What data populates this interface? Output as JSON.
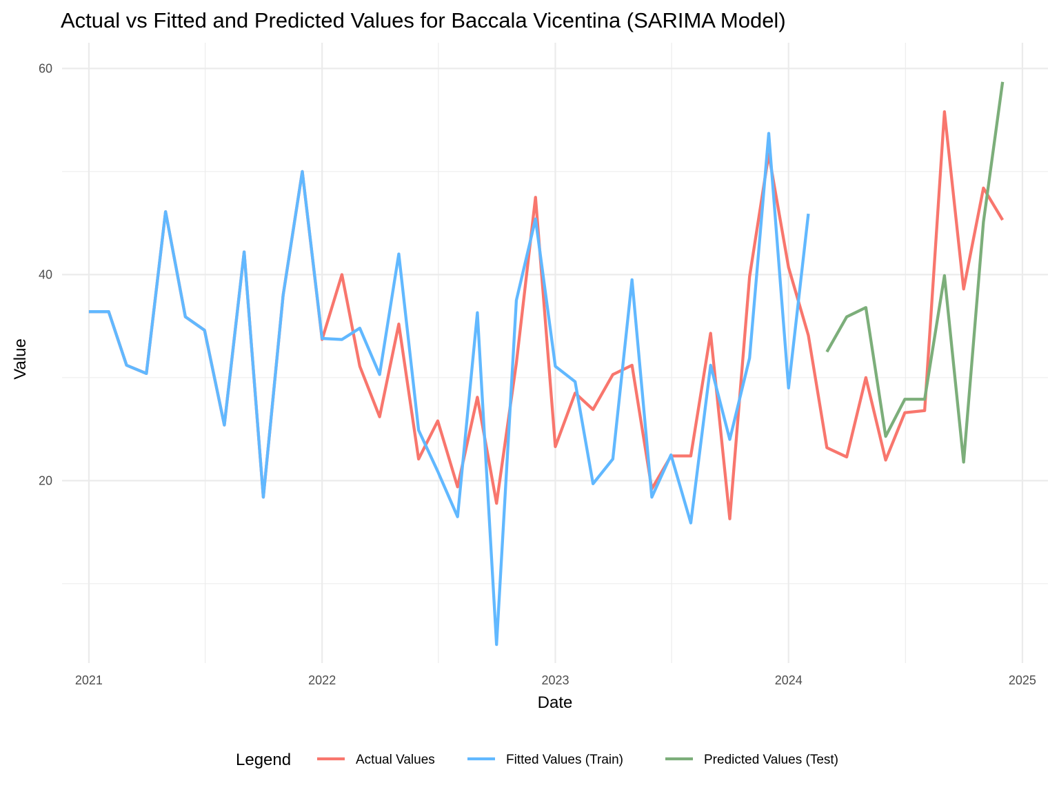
{
  "chart_data": {
    "type": "line",
    "title": "Actual vs Fitted and Predicted Values for Baccala Vicentina (SARIMA Model)",
    "xlabel": "Date",
    "ylabel": "Value",
    "x_ticks": [
      "2021",
      "2022",
      "2023",
      "2024",
      "2025"
    ],
    "y_ticks": [
      20,
      40,
      60
    ],
    "ylim": [
      2.3,
      62.5
    ],
    "xlim": [
      "2020-11-20",
      "2025-02-10"
    ],
    "grid": true,
    "legend": {
      "title": "Legend",
      "position": "bottom"
    },
    "series": [
      {
        "name": "Actual Values",
        "color": "#F8766D",
        "x": [
          "2021-01-01",
          "2021-02-01",
          "2021-03-01",
          "2021-04-01",
          "2021-05-01",
          "2021-06-01",
          "2021-07-01",
          "2021-08-01",
          "2021-09-01",
          "2021-10-01",
          "2021-11-01",
          "2021-12-01",
          "2022-01-01",
          "2022-02-01",
          "2022-03-01",
          "2022-04-01",
          "2022-05-01",
          "2022-06-01",
          "2022-07-01",
          "2022-08-01",
          "2022-09-01",
          "2022-10-01",
          "2022-11-01",
          "2022-12-01",
          "2023-01-01",
          "2023-02-01",
          "2023-03-01",
          "2023-04-01",
          "2023-05-01",
          "2023-06-01",
          "2023-07-01",
          "2023-08-01",
          "2023-09-01",
          "2023-10-01",
          "2023-11-01",
          "2023-12-01",
          "2024-01-01",
          "2024-02-01",
          "2024-03-01",
          "2024-04-01",
          "2024-05-01",
          "2024-06-01",
          "2024-07-01",
          "2024-08-01",
          "2024-09-01",
          "2024-10-01",
          "2024-11-01",
          "2024-12-01"
        ],
        "y": [
          36.4,
          36.4,
          31.2,
          30.4,
          46.1,
          35.9,
          34.6,
          25.4,
          42.2,
          18.4,
          38.0,
          50.0,
          33.7,
          40.0,
          31.1,
          26.2,
          35.2,
          22.1,
          25.8,
          19.4,
          28.1,
          17.8,
          31.4,
          47.5,
          23.3,
          28.5,
          26.9,
          30.3,
          31.2,
          19.2,
          22.4,
          22.4,
          34.3,
          16.3,
          39.8,
          51.7,
          40.7,
          34.1,
          23.2,
          22.3,
          30.0,
          22.0,
          26.6,
          26.8,
          55.8,
          38.6,
          48.4,
          45.3
        ]
      },
      {
        "name": "Fitted Values (Train)",
        "color": "#61B8FF",
        "x": [
          "2021-01-01",
          "2021-02-01",
          "2021-03-01",
          "2021-04-01",
          "2021-05-01",
          "2021-06-01",
          "2021-07-01",
          "2021-08-01",
          "2021-09-01",
          "2021-10-01",
          "2021-11-01",
          "2021-12-01",
          "2022-01-01",
          "2022-02-01",
          "2022-03-01",
          "2022-04-01",
          "2022-05-01",
          "2022-06-01",
          "2022-07-01",
          "2022-08-01",
          "2022-09-01",
          "2022-10-01",
          "2022-11-01",
          "2022-12-01",
          "2023-01-01",
          "2023-02-01",
          "2023-03-01",
          "2023-04-01",
          "2023-05-01",
          "2023-06-01",
          "2023-07-01",
          "2023-08-01",
          "2023-09-01",
          "2023-10-01",
          "2023-11-01",
          "2023-12-01",
          "2024-01-01",
          "2024-02-01"
        ],
        "y": [
          36.4,
          36.4,
          31.2,
          30.4,
          46.1,
          35.9,
          34.6,
          25.4,
          42.2,
          18.4,
          38.0,
          50.0,
          33.8,
          33.7,
          34.8,
          30.3,
          42.0,
          24.9,
          20.9,
          16.5,
          36.3,
          4.1,
          37.5,
          45.4,
          31.1,
          29.6,
          19.7,
          22.1,
          39.5,
          18.4,
          22.5,
          15.9,
          31.2,
          24.0,
          31.9,
          53.7,
          29.0,
          45.9
        ]
      },
      {
        "name": "Predicted Values (Test)",
        "color": "#7CAE7A",
        "x": [
          "2024-03-01",
          "2024-04-01",
          "2024-05-01",
          "2024-06-01",
          "2024-07-01",
          "2024-08-01",
          "2024-09-01",
          "2024-10-01",
          "2024-11-01",
          "2024-12-01"
        ],
        "y": [
          32.5,
          35.9,
          36.8,
          24.3,
          27.9,
          27.9,
          39.9,
          21.8,
          45.1,
          58.7
        ]
      }
    ]
  }
}
